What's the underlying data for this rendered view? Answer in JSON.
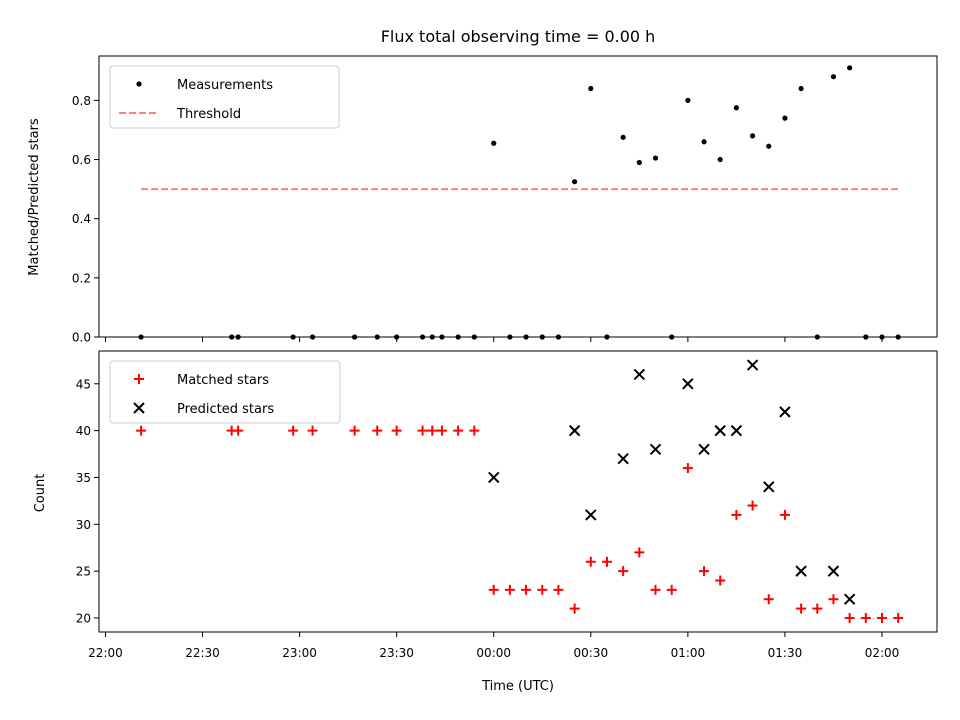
{
  "chart_data": [
    {
      "type": "scatter",
      "title": "Flux total observing time = 0.00 h",
      "xlabel": "",
      "ylabel": "Matched/Predicted stars",
      "ylim": [
        0,
        0.95
      ],
      "yticks": [
        "0.0",
        "0.2",
        "0.4",
        "0.6",
        "0.8"
      ],
      "legend": "top-left",
      "grid": false,
      "series": [
        {
          "name": "Measurements",
          "marker": "dot",
          "color": "#000000",
          "points": [
            [
              "22:11",
              0.0
            ],
            [
              "22:39",
              0.0
            ],
            [
              "22:41",
              0.0
            ],
            [
              "22:58",
              0.0
            ],
            [
              "23:04",
              0.0
            ],
            [
              "23:17",
              0.0
            ],
            [
              "23:24",
              0.0
            ],
            [
              "23:30",
              0.0
            ],
            [
              "23:38",
              0.0
            ],
            [
              "23:41",
              0.0
            ],
            [
              "23:44",
              0.0
            ],
            [
              "23:49",
              0.0
            ],
            [
              "23:54",
              0.0
            ],
            [
              "00:00",
              0.655
            ],
            [
              "00:05",
              0.0
            ],
            [
              "00:10",
              0.0
            ],
            [
              "00:15",
              0.0
            ],
            [
              "00:20",
              0.0
            ],
            [
              "00:25",
              0.525
            ],
            [
              "00:30",
              0.84
            ],
            [
              "00:35",
              0.0
            ],
            [
              "00:40",
              0.675
            ],
            [
              "00:45",
              0.59
            ],
            [
              "00:50",
              0.605
            ],
            [
              "00:55",
              0.0
            ],
            [
              "01:00",
              0.8
            ],
            [
              "01:05",
              0.66
            ],
            [
              "01:10",
              0.6
            ],
            [
              "01:15",
              0.775
            ],
            [
              "01:20",
              0.68
            ],
            [
              "01:25",
              0.645
            ],
            [
              "01:30",
              0.74
            ],
            [
              "01:35",
              0.84
            ],
            [
              "01:40",
              0.0
            ],
            [
              "01:45",
              0.88
            ],
            [
              "01:50",
              0.91
            ],
            [
              "01:55",
              0.0
            ],
            [
              "02:00",
              0.0
            ],
            [
              "02:05",
              0.0
            ]
          ]
        },
        {
          "name": "Threshold",
          "marker": "dashed-line",
          "color": "#ff7f7f",
          "points": [
            [
              "22:11",
              0.5
            ],
            [
              "02:05",
              0.5
            ]
          ]
        }
      ]
    },
    {
      "type": "scatter",
      "title": "",
      "xlabel": "Time (UTC)",
      "ylabel": "Count",
      "ylim": [
        18.5,
        48.5
      ],
      "yticks": [
        "20",
        "25",
        "30",
        "35",
        "40",
        "45"
      ],
      "xticks": [
        "22:00",
        "22:30",
        "23:00",
        "23:30",
        "00:00",
        "00:30",
        "01:00",
        "01:30",
        "02:00"
      ],
      "legend": "top-left",
      "grid": false,
      "series": [
        {
          "name": "Matched stars",
          "marker": "plus",
          "color": "#ff0000",
          "points": [
            [
              "22:11",
              40
            ],
            [
              "22:39",
              40
            ],
            [
              "22:41",
              40
            ],
            [
              "22:58",
              40
            ],
            [
              "23:04",
              40
            ],
            [
              "23:17",
              40
            ],
            [
              "23:24",
              40
            ],
            [
              "23:30",
              40
            ],
            [
              "23:38",
              40
            ],
            [
              "23:41",
              40
            ],
            [
              "23:44",
              40
            ],
            [
              "23:49",
              40
            ],
            [
              "23:54",
              40
            ],
            [
              "00:00",
              23
            ],
            [
              "00:05",
              23
            ],
            [
              "00:10",
              23
            ],
            [
              "00:15",
              23
            ],
            [
              "00:20",
              23
            ],
            [
              "00:25",
              21
            ],
            [
              "00:30",
              26
            ],
            [
              "00:35",
              26
            ],
            [
              "00:40",
              25
            ],
            [
              "00:45",
              27
            ],
            [
              "00:50",
              23
            ],
            [
              "00:55",
              23
            ],
            [
              "01:00",
              36
            ],
            [
              "01:05",
              25
            ],
            [
              "01:10",
              24
            ],
            [
              "01:15",
              31
            ],
            [
              "01:20",
              32
            ],
            [
              "01:25",
              22
            ],
            [
              "01:30",
              31
            ],
            [
              "01:35",
              21
            ],
            [
              "01:40",
              21
            ],
            [
              "01:45",
              22
            ],
            [
              "01:50",
              20
            ],
            [
              "01:55",
              20
            ],
            [
              "02:00",
              20
            ],
            [
              "02:05",
              20
            ]
          ]
        },
        {
          "name": "Predicted stars",
          "marker": "x",
          "color": "#000000",
          "points": [
            [
              "00:00",
              35
            ],
            [
              "00:25",
              40
            ],
            [
              "00:30",
              31
            ],
            [
              "00:40",
              37
            ],
            [
              "00:45",
              46
            ],
            [
              "00:50",
              38
            ],
            [
              "01:00",
              45
            ],
            [
              "01:05",
              38
            ],
            [
              "01:10",
              40
            ],
            [
              "01:15",
              40
            ],
            [
              "01:20",
              47
            ],
            [
              "01:25",
              34
            ],
            [
              "01:30",
              42
            ],
            [
              "01:35",
              25
            ],
            [
              "01:45",
              25
            ],
            [
              "01:50",
              22
            ]
          ]
        }
      ]
    }
  ]
}
